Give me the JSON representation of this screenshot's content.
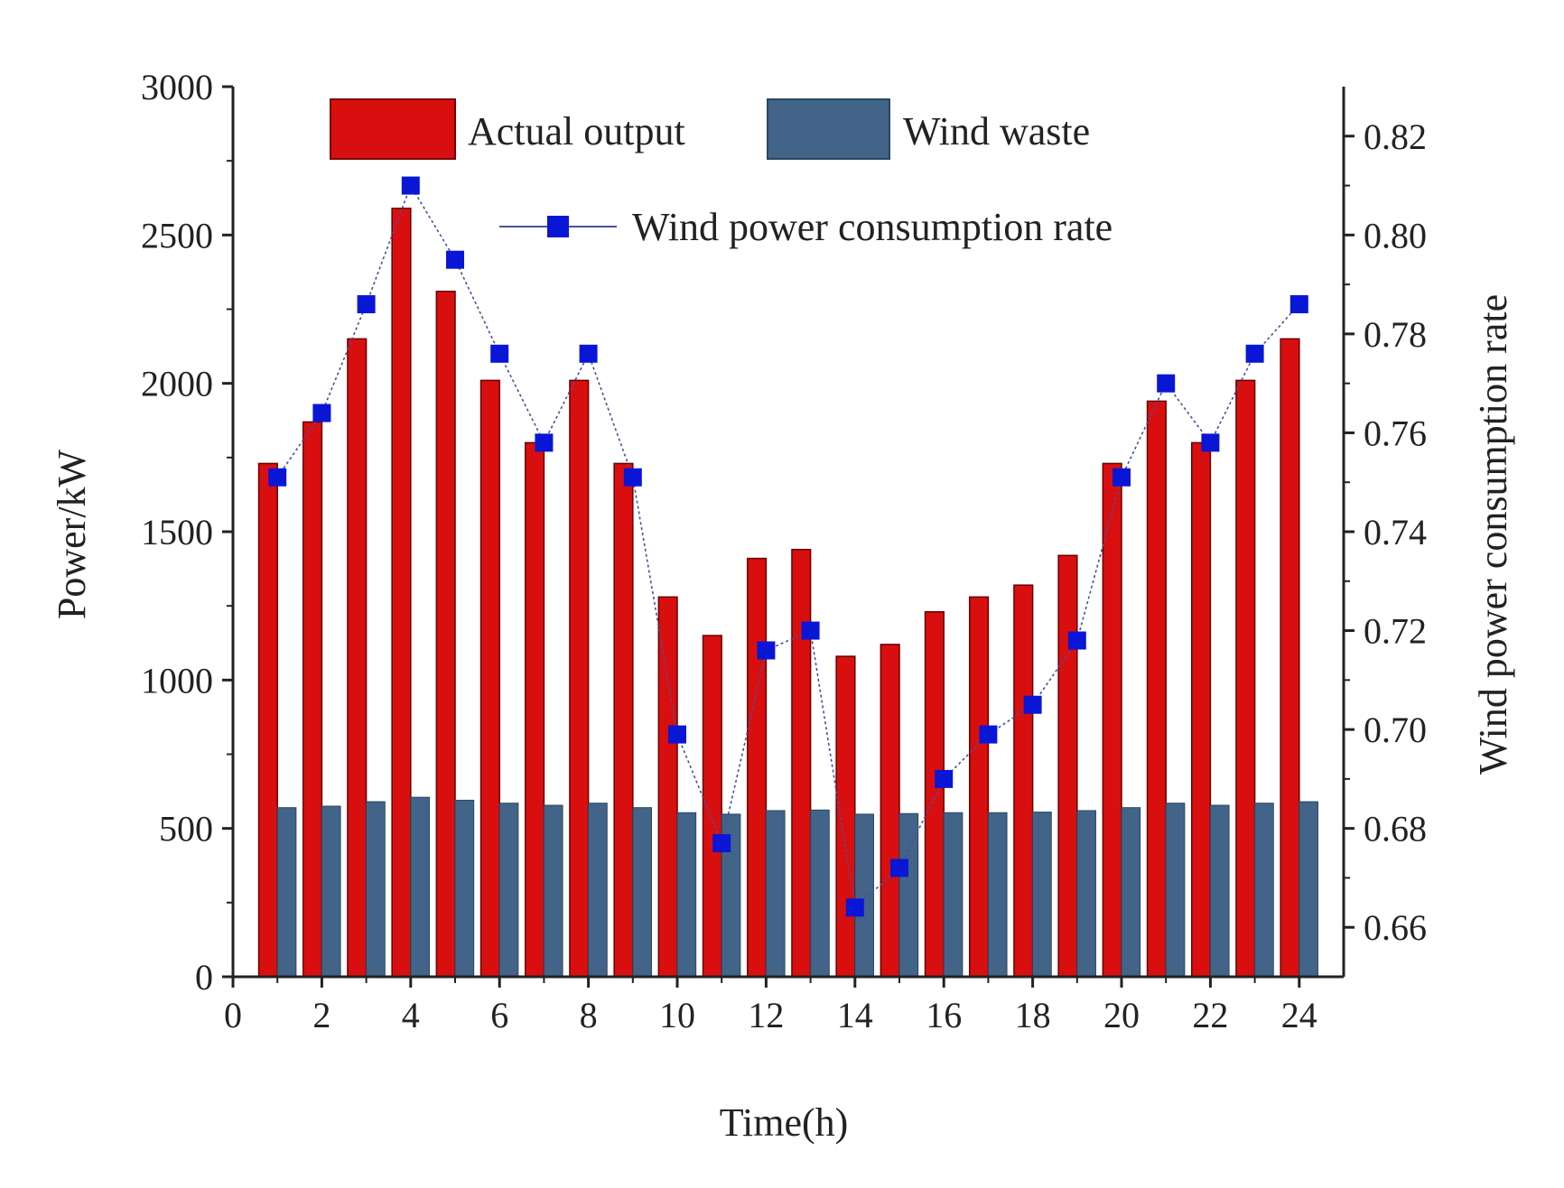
{
  "chart_data": {
    "type": "bar",
    "xlabel": "Time(h)",
    "ylabel": "Power/kW",
    "y2label": "Wind power consumption rate",
    "xlim": [
      0,
      25
    ],
    "ylim": [
      0,
      3000
    ],
    "y2lim": [
      0.65,
      0.83
    ],
    "xticks": [
      0,
      2,
      4,
      6,
      8,
      10,
      12,
      14,
      16,
      18,
      20,
      22,
      24
    ],
    "yticks": [
      0,
      500,
      1000,
      1500,
      2000,
      2500,
      3000
    ],
    "y2ticks": [
      "0.66",
      "0.68",
      "0.70",
      "0.72",
      "0.74",
      "0.76",
      "0.78",
      "0.80",
      "0.82"
    ],
    "x": [
      1,
      2,
      3,
      4,
      5,
      6,
      7,
      8,
      9,
      10,
      11,
      12,
      13,
      14,
      15,
      16,
      17,
      18,
      19,
      20,
      21,
      22,
      23,
      24
    ],
    "series": [
      {
        "name": "Actual output",
        "kind": "bar",
        "axis": "left",
        "color": "#d90f0f",
        "values": [
          1730,
          1870,
          2150,
          2590,
          2310,
          2010,
          1800,
          2010,
          1730,
          1280,
          1150,
          1410,
          1440,
          1080,
          1120,
          1230,
          1280,
          1320,
          1420,
          1730,
          1940,
          1800,
          2010,
          2150
        ]
      },
      {
        "name": "Wind waste",
        "kind": "bar",
        "axis": "left",
        "color": "#416488",
        "values": [
          570,
          575,
          590,
          605,
          595,
          585,
          578,
          585,
          570,
          553,
          548,
          560,
          562,
          548,
          550,
          553,
          553,
          555,
          560,
          570,
          585,
          578,
          585,
          590
        ]
      },
      {
        "name": "Wind power consumption rate",
        "kind": "line",
        "axis": "right",
        "color": "#0a16d6",
        "values": [
          0.751,
          0.764,
          0.786,
          0.81,
          0.795,
          0.776,
          0.758,
          0.776,
          0.751,
          0.699,
          0.677,
          0.716,
          0.72,
          0.664,
          0.672,
          0.69,
          0.699,
          0.705,
          0.718,
          0.751,
          0.77,
          0.758,
          0.776,
          0.786
        ]
      }
    ],
    "legend_position": "top"
  }
}
